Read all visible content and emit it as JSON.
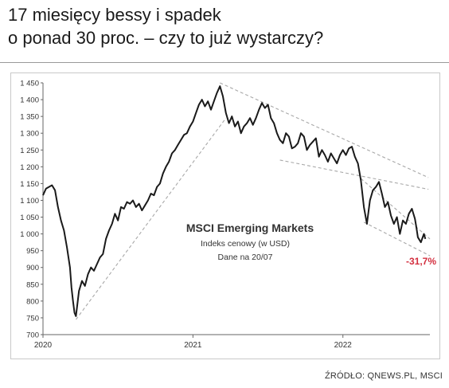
{
  "headline": {
    "line1": "17 miesięcy bessy i spadek",
    "line2": "o ponad 30 proc. – czy to już wystarczy?"
  },
  "source": "ŹRÓDŁO: QNEWS.PL, MSCI",
  "colors": {
    "line": "#1a1a1a",
    "trend": "#a8a8a8",
    "annotation": "#d32f3f",
    "grid_text": "#333333"
  },
  "chart_data": {
    "type": "line",
    "title": "MSCI Emerging Markets",
    "subtitle": "Indeks cenowy (w USD)",
    "note": "Dane na 20/07",
    "annotation": "-31,7%",
    "ylim": [
      700,
      1450
    ],
    "yticks": [
      700,
      750,
      800,
      850,
      900,
      950,
      "1 000",
      "1 050",
      "1 100",
      "1 150",
      "1 200",
      "1 250",
      "1 300",
      "1 350",
      "1 400",
      "1 450"
    ],
    "ytick_values": [
      700,
      750,
      800,
      850,
      900,
      950,
      1000,
      1050,
      1100,
      1150,
      1200,
      1250,
      1300,
      1350,
      1400,
      1450
    ],
    "xlim": [
      2020.0,
      2022.58
    ],
    "xticks": [
      "2020",
      "2021",
      "2022"
    ],
    "xtick_values": [
      2020.0,
      2021.0,
      2022.0
    ],
    "series": [
      {
        "values": [
          [
            2020.0,
            1115
          ],
          [
            2020.02,
            1135
          ],
          [
            2020.04,
            1140
          ],
          [
            2020.06,
            1145
          ],
          [
            2020.08,
            1130
          ],
          [
            2020.1,
            1080
          ],
          [
            2020.12,
            1040
          ],
          [
            2020.14,
            1010
          ],
          [
            2020.16,
            960
          ],
          [
            2020.18,
            900
          ],
          [
            2020.19,
            840
          ],
          [
            2020.2,
            800
          ],
          [
            2020.21,
            765
          ],
          [
            2020.22,
            755
          ],
          [
            2020.24,
            830
          ],
          [
            2020.26,
            860
          ],
          [
            2020.28,
            845
          ],
          [
            2020.3,
            880
          ],
          [
            2020.32,
            900
          ],
          [
            2020.34,
            890
          ],
          [
            2020.36,
            910
          ],
          [
            2020.38,
            930
          ],
          [
            2020.4,
            940
          ],
          [
            2020.42,
            985
          ],
          [
            2020.44,
            1010
          ],
          [
            2020.46,
            1030
          ],
          [
            2020.48,
            1060
          ],
          [
            2020.5,
            1040
          ],
          [
            2020.52,
            1080
          ],
          [
            2020.54,
            1075
          ],
          [
            2020.56,
            1095
          ],
          [
            2020.58,
            1090
          ],
          [
            2020.6,
            1100
          ],
          [
            2020.62,
            1080
          ],
          [
            2020.64,
            1090
          ],
          [
            2020.66,
            1070
          ],
          [
            2020.68,
            1085
          ],
          [
            2020.7,
            1100
          ],
          [
            2020.72,
            1120
          ],
          [
            2020.74,
            1115
          ],
          [
            2020.76,
            1140
          ],
          [
            2020.78,
            1150
          ],
          [
            2020.8,
            1180
          ],
          [
            2020.82,
            1200
          ],
          [
            2020.84,
            1215
          ],
          [
            2020.86,
            1240
          ],
          [
            2020.88,
            1250
          ],
          [
            2020.9,
            1265
          ],
          [
            2020.92,
            1280
          ],
          [
            2020.94,
            1295
          ],
          [
            2020.96,
            1300
          ],
          [
            2020.98,
            1320
          ],
          [
            2021.0,
            1335
          ],
          [
            2021.02,
            1360
          ],
          [
            2021.04,
            1385
          ],
          [
            2021.06,
            1400
          ],
          [
            2021.08,
            1380
          ],
          [
            2021.1,
            1395
          ],
          [
            2021.12,
            1370
          ],
          [
            2021.14,
            1395
          ],
          [
            2021.16,
            1420
          ],
          [
            2021.18,
            1440
          ],
          [
            2021.2,
            1410
          ],
          [
            2021.22,
            1360
          ],
          [
            2021.24,
            1330
          ],
          [
            2021.26,
            1350
          ],
          [
            2021.28,
            1320
          ],
          [
            2021.3,
            1335
          ],
          [
            2021.32,
            1300
          ],
          [
            2021.34,
            1320
          ],
          [
            2021.36,
            1330
          ],
          [
            2021.38,
            1345
          ],
          [
            2021.4,
            1325
          ],
          [
            2021.42,
            1345
          ],
          [
            2021.44,
            1370
          ],
          [
            2021.46,
            1390
          ],
          [
            2021.48,
            1375
          ],
          [
            2021.5,
            1385
          ],
          [
            2021.52,
            1345
          ],
          [
            2021.54,
            1330
          ],
          [
            2021.56,
            1300
          ],
          [
            2021.58,
            1280
          ],
          [
            2021.6,
            1270
          ],
          [
            2021.62,
            1300
          ],
          [
            2021.64,
            1290
          ],
          [
            2021.66,
            1255
          ],
          [
            2021.68,
            1260
          ],
          [
            2021.7,
            1270
          ],
          [
            2021.72,
            1300
          ],
          [
            2021.74,
            1290
          ],
          [
            2021.76,
            1250
          ],
          [
            2021.78,
            1265
          ],
          [
            2021.8,
            1275
          ],
          [
            2021.82,
            1285
          ],
          [
            2021.84,
            1230
          ],
          [
            2021.86,
            1250
          ],
          [
            2021.88,
            1235
          ],
          [
            2021.9,
            1215
          ],
          [
            2021.92,
            1240
          ],
          [
            2021.94,
            1225
          ],
          [
            2021.96,
            1210
          ],
          [
            2021.98,
            1235
          ],
          [
            2022.0,
            1250
          ],
          [
            2022.02,
            1235
          ],
          [
            2022.04,
            1255
          ],
          [
            2022.06,
            1260
          ],
          [
            2022.08,
            1230
          ],
          [
            2022.1,
            1210
          ],
          [
            2022.12,
            1160
          ],
          [
            2022.14,
            1080
          ],
          [
            2022.16,
            1030
          ],
          [
            2022.18,
            1100
          ],
          [
            2022.2,
            1130
          ],
          [
            2022.22,
            1140
          ],
          [
            2022.24,
            1155
          ],
          [
            2022.26,
            1120
          ],
          [
            2022.28,
            1080
          ],
          [
            2022.3,
            1095
          ],
          [
            2022.32,
            1055
          ],
          [
            2022.34,
            1030
          ],
          [
            2022.36,
            1050
          ],
          [
            2022.38,
            1000
          ],
          [
            2022.4,
            1040
          ],
          [
            2022.42,
            1030
          ],
          [
            2022.44,
            1060
          ],
          [
            2022.46,
            1075
          ],
          [
            2022.48,
            1045
          ],
          [
            2022.49,
            1020
          ],
          [
            2022.5,
            990
          ],
          [
            2022.52,
            975
          ],
          [
            2022.54,
            1000
          ],
          [
            2022.55,
            985
          ]
        ]
      }
    ],
    "trendlines": [
      {
        "from": [
          2020.22,
          745
        ],
        "to": [
          2021.22,
          1345
        ]
      },
      {
        "from": [
          2021.18,
          1450
        ],
        "to": [
          2022.57,
          1168
        ]
      },
      {
        "from": [
          2021.58,
          1220
        ],
        "to": [
          2022.57,
          1133
        ]
      },
      {
        "from": [
          2022.12,
          1165
        ],
        "to": [
          2022.58,
          985
        ]
      },
      {
        "from": [
          2022.14,
          1035
        ],
        "to": [
          2022.58,
          935
        ]
      }
    ]
  }
}
